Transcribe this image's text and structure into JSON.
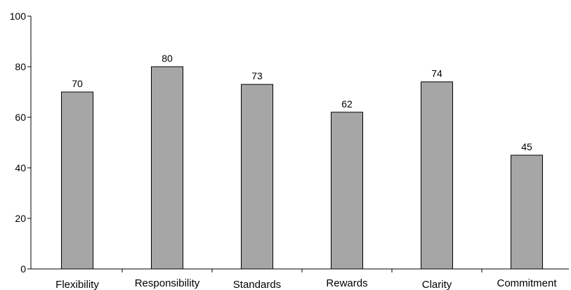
{
  "chart_data": {
    "type": "bar",
    "categories": [
      "Flexibility",
      "Responsibility",
      "Standards",
      "Rewards",
      "Clarity",
      "Commitment"
    ],
    "values": [
      70,
      80,
      73,
      62,
      74,
      45
    ],
    "data_labels": [
      "70",
      "80",
      "73",
      "62",
      "74",
      "45"
    ],
    "ylim": [
      0,
      100
    ],
    "yticks": [
      0,
      20,
      40,
      60,
      80,
      100
    ],
    "ytick_labels": [
      "0",
      "20",
      "40",
      "60",
      "80",
      "100"
    ],
    "grid": false,
    "legend": "none",
    "colors": {
      "bar_fill": "#a6a6a6",
      "bar_stroke": "#000000",
      "axis": "#000000"
    }
  }
}
